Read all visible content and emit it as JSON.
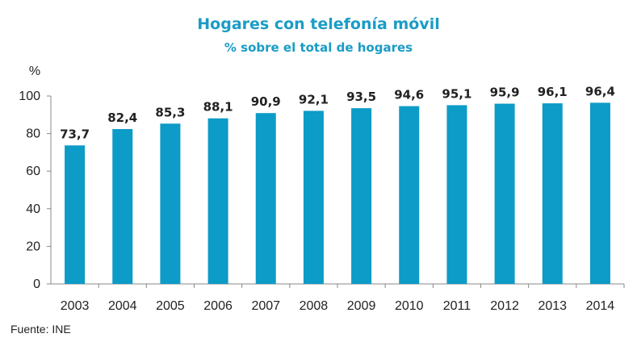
{
  "chart_data": {
    "type": "bar",
    "title": "Hogares con telefonía móvil",
    "subtitle": "% sobre el total de hogares",
    "ylabel": "%",
    "xlabel": "",
    "ylim": [
      0,
      100
    ],
    "yticks": [
      0,
      20,
      40,
      60,
      80,
      100
    ],
    "categories": [
      "2003",
      "2004",
      "2005",
      "2006",
      "2007",
      "2008",
      "2009",
      "2010",
      "2011",
      "2012",
      "2013",
      "2014"
    ],
    "values": [
      73.7,
      82.4,
      85.3,
      88.1,
      90.9,
      92.1,
      93.5,
      94.6,
      95.1,
      95.9,
      96.1,
      96.4
    ],
    "value_labels": [
      "73,7",
      "82,4",
      "85,3",
      "88,1",
      "90,9",
      "92,1",
      "93,5",
      "94,6",
      "95,1",
      "95,9",
      "96,1",
      "96,4"
    ],
    "grid": false,
    "bar_color": "#0d9bc7",
    "source": "Fuente: INE"
  }
}
